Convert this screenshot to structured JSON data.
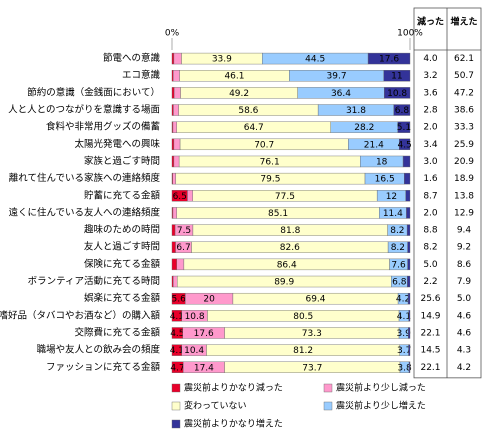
{
  "chart_data": {
    "type": "stacked-bar-horizontal",
    "categories": [
      "節電への意識",
      "エコ意識",
      "節約の意識（金銭面において）",
      "人と人とのつながりを意識する場面",
      "食料や非常用グッズの備蓄",
      "太陽光発電への興味",
      "家族と過ごす時間",
      "離れて住んでいる家族への連絡頻度",
      "貯蓄に充てる金額",
      "遠くに住んでいる友人への連絡頻度",
      "趣味のための時間",
      "友人と過ごす時間",
      "保険に充てる金額",
      "ボランティア活動に充てる時間",
      "娯楽に充てる金額",
      "嗜好品（タバコやお酒など）の購入額",
      "交際費に充てる金額",
      "職場や友人との飲み会の頻度",
      "ファッションに充てる金額"
    ],
    "series": [
      {
        "name": "震災前よりかなり減った",
        "color": "#e8002a",
        "values": [
          0.8,
          0.5,
          0.9,
          0.6,
          0.4,
          0.8,
          0.8,
          0.3,
          6.5,
          0.4,
          1.3,
          1.5,
          2.0,
          0.5,
          5.6,
          4.1,
          4.5,
          4.1,
          4.7
        ]
      },
      {
        "name": "震災前より少し減った",
        "color": "#ff99cc",
        "values": [
          3.2,
          2.7,
          2.7,
          2.2,
          1.6,
          2.6,
          2.2,
          1.3,
          2.2,
          1.6,
          7.5,
          6.7,
          3.0,
          1.7,
          20.0,
          10.8,
          17.6,
          10.4,
          17.4
        ]
      },
      {
        "name": "変わっていない",
        "color": "#ffffcc",
        "values": [
          33.9,
          46.1,
          49.2,
          58.6,
          64.7,
          70.7,
          76.1,
          79.5,
          77.5,
          85.1,
          81.8,
          82.6,
          86.4,
          89.9,
          69.4,
          80.5,
          73.3,
          81.2,
          73.7
        ]
      },
      {
        "name": "震災前より少し増えた",
        "color": "#99ccff",
        "values": [
          44.5,
          39.7,
          36.4,
          31.8,
          28.2,
          21.4,
          18.0,
          16.5,
          12.0,
          11.4,
          8.2,
          8.2,
          7.6,
          6.8,
          4.2,
          4.1,
          3.9,
          3.7,
          3.8
        ]
      },
      {
        "name": "震災前よりかなり増えた",
        "color": "#333399",
        "values": [
          17.6,
          11.0,
          10.8,
          6.8,
          5.1,
          4.5,
          2.9,
          2.4,
          1.8,
          1.5,
          1.2,
          1.0,
          1.0,
          1.1,
          0.8,
          0.5,
          0.7,
          0.6,
          0.4
        ]
      }
    ],
    "xlim": [
      0,
      100
    ],
    "xticks": [
      {
        "value": 0,
        "label": "0%"
      },
      {
        "value": 100,
        "label": "100%"
      }
    ],
    "table": {
      "headers": [
        "減った",
        "増えた"
      ],
      "rows": [
        [
          "4.0",
          "62.1"
        ],
        [
          "3.2",
          "50.7"
        ],
        [
          "3.6",
          "47.2"
        ],
        [
          "2.8",
          "38.6"
        ],
        [
          "2.0",
          "33.3"
        ],
        [
          "3.4",
          "25.9"
        ],
        [
          "3.0",
          "20.9"
        ],
        [
          "1.6",
          "18.9"
        ],
        [
          "8.7",
          "13.8"
        ],
        [
          "2.0",
          "12.9"
        ],
        [
          "8.8",
          "9.4"
        ],
        [
          "8.2",
          "9.2"
        ],
        [
          "5.0",
          "8.6"
        ],
        [
          "2.2",
          "7.9"
        ],
        [
          "25.6",
          "5.0"
        ],
        [
          "14.9",
          "4.6"
        ],
        [
          "22.1",
          "4.6"
        ],
        [
          "14.5",
          "4.3"
        ],
        [
          "22.1",
          "4.2"
        ]
      ]
    }
  }
}
